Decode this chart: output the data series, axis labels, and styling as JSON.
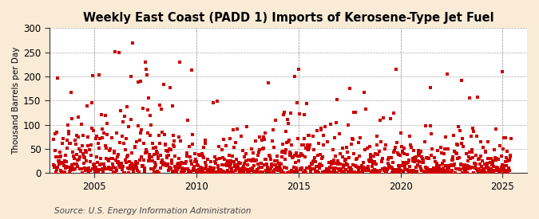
{
  "title": "Weekly East Coast (PADD 1) Imports of Kerosene-Type Jet Fuel",
  "ylabel": "Thousand Barrels per Day",
  "source_text": "Source: U.S. Energy Information Administration",
  "background_color": "#faebd7",
  "plot_bg_color": "#ffffff",
  "dot_color": "#cc0000",
  "dot_size": 5,
  "dot_marker": "s",
  "xlim_left": 2002.8,
  "xlim_right": 2026.2,
  "ylim_bottom": 0,
  "ylim_top": 300,
  "yticks": [
    0,
    50,
    100,
    150,
    200,
    250,
    300
  ],
  "xticks": [
    2005,
    2010,
    2015,
    2020,
    2025
  ],
  "start_year": 2003.0,
  "end_year": 2025.4,
  "seed": 17
}
